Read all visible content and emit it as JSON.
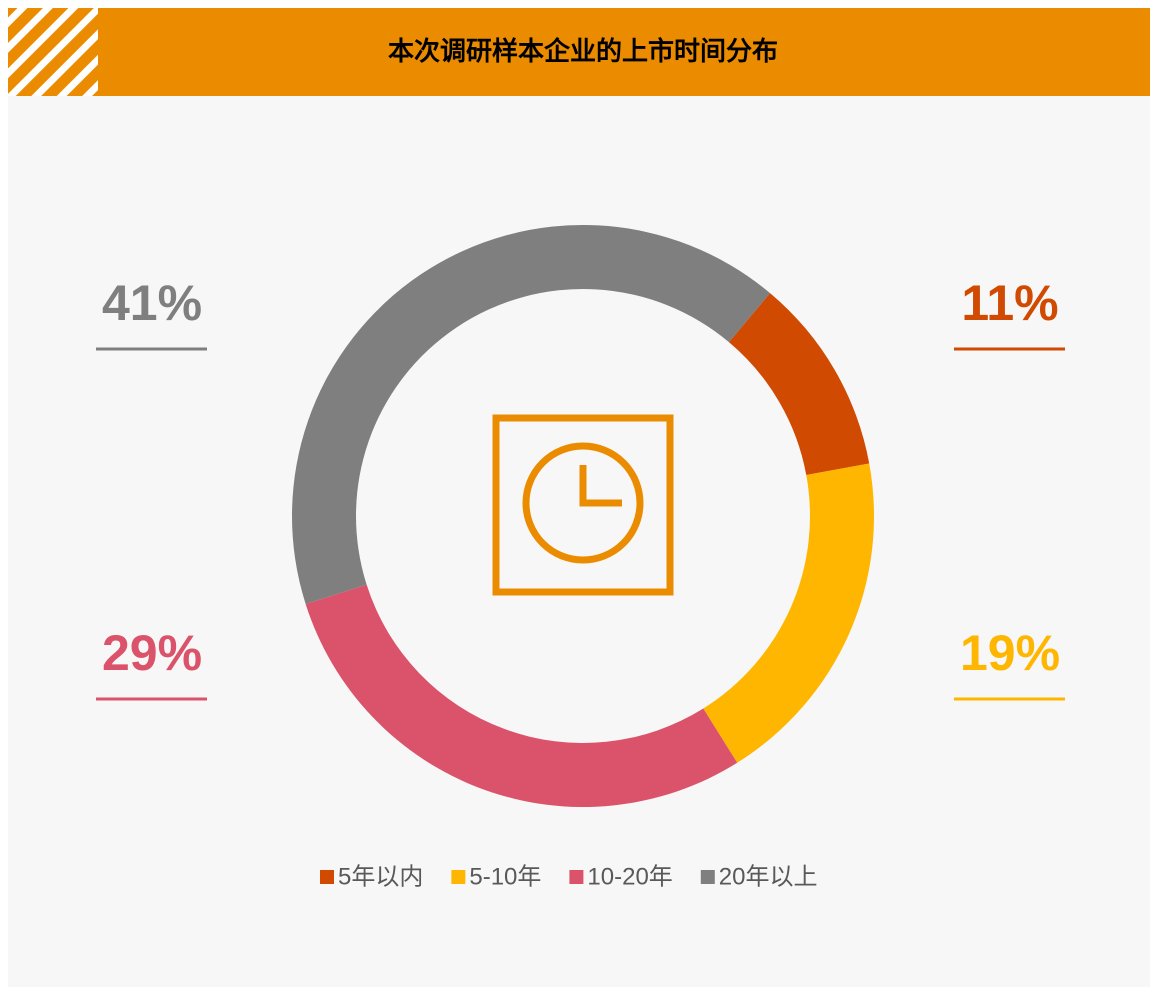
{
  "chart_data": {
    "type": "pie",
    "title": "本次调研样本企业的上市时间分布",
    "categories": [
      "5年以内",
      "5-10年",
      "10-20年",
      "20年以上"
    ],
    "values": [
      11,
      19,
      29,
      41
    ],
    "value_labels": [
      "11%",
      "19%",
      "29%",
      "41%"
    ],
    "colors": [
      "#d04a02",
      "#ffb600",
      "#db536a",
      "#7f7f7f"
    ],
    "legend": "bottom"
  }
}
